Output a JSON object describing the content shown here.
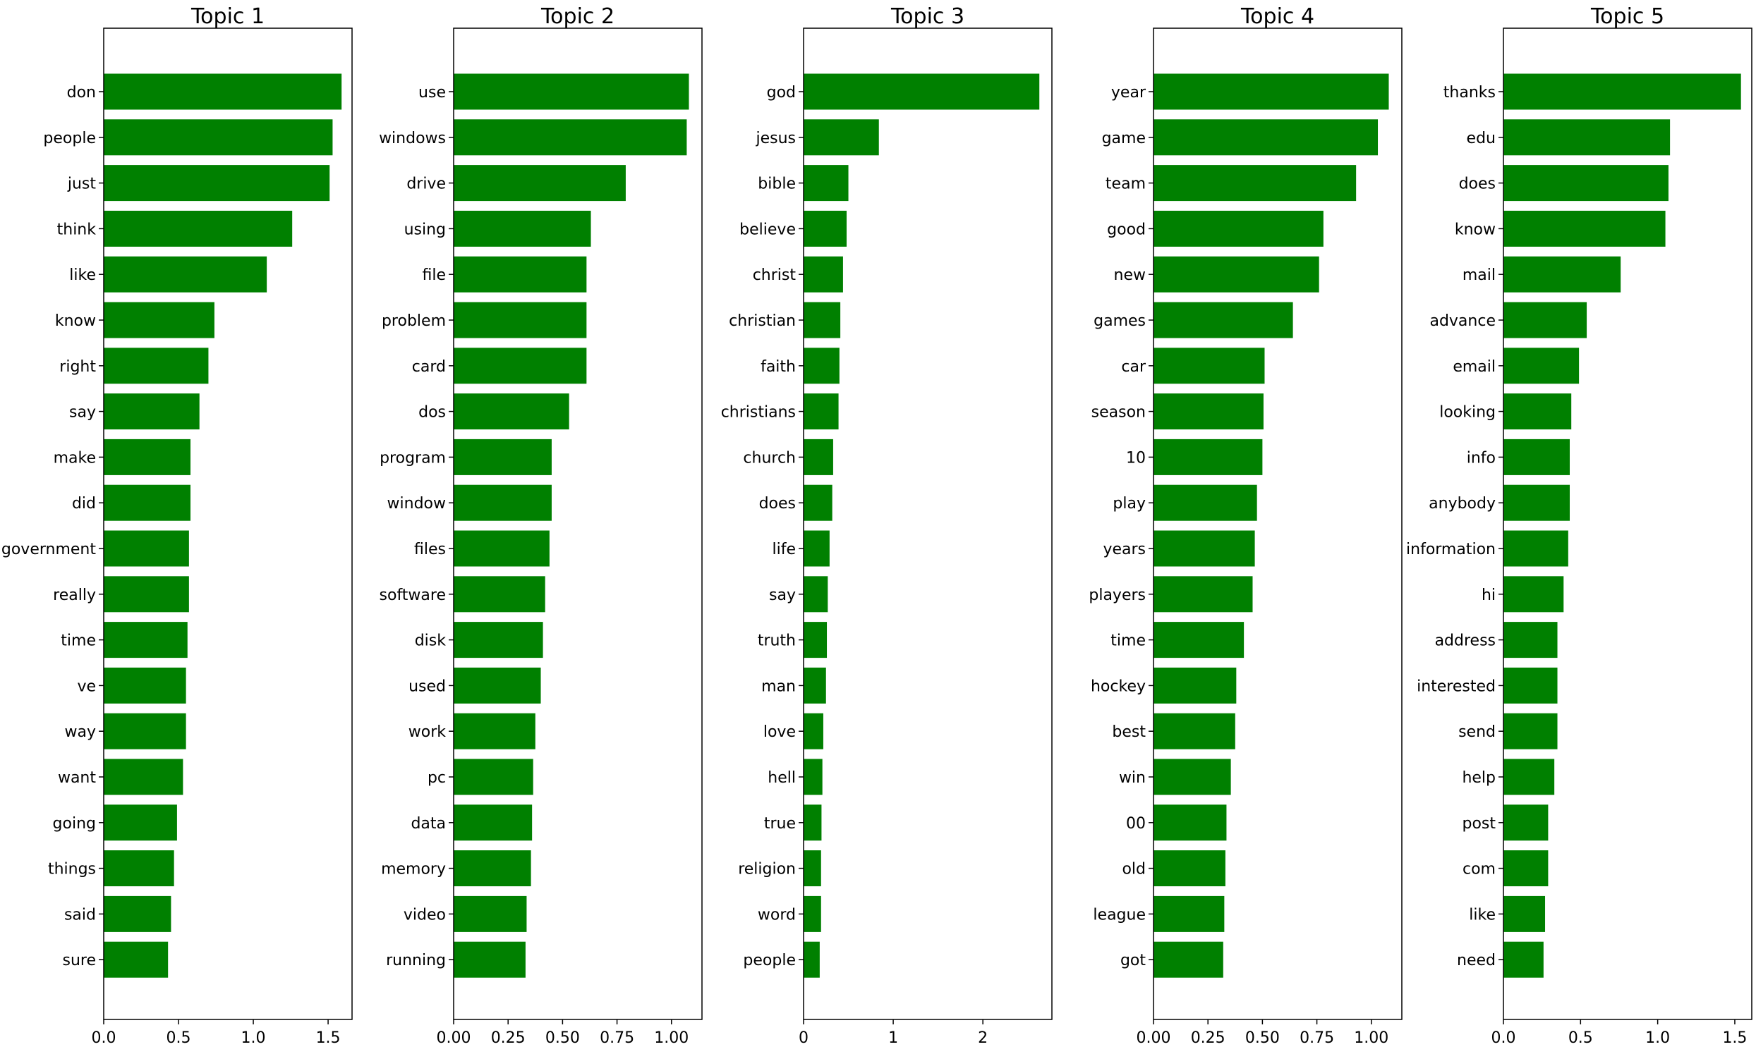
{
  "chart_data": [
    {
      "type": "bar",
      "orientation": "horizontal",
      "title": "Topic 1",
      "categories": [
        "don",
        "people",
        "just",
        "think",
        "like",
        "know",
        "right",
        "say",
        "make",
        "did",
        "government",
        "really",
        "time",
        "ve",
        "way",
        "want",
        "going",
        "things",
        "said",
        "sure"
      ],
      "values": [
        1.59,
        1.53,
        1.51,
        1.26,
        1.09,
        0.74,
        0.7,
        0.64,
        0.58,
        0.58,
        0.57,
        0.57,
        0.56,
        0.55,
        0.55,
        0.53,
        0.49,
        0.47,
        0.45,
        0.43
      ],
      "xlim": [
        0,
        1.66
      ],
      "xticks": [
        0.0,
        0.5,
        1.0,
        1.5
      ],
      "xtick_labels": [
        "0.0",
        "0.5",
        "1.0",
        "1.5"
      ],
      "bar_color": "#008000",
      "grid": false
    },
    {
      "type": "bar",
      "orientation": "horizontal",
      "title": "Topic 2",
      "categories": [
        "use",
        "windows",
        "drive",
        "using",
        "file",
        "problem",
        "card",
        "dos",
        "program",
        "window",
        "files",
        "software",
        "disk",
        "used",
        "work",
        "pc",
        "data",
        "memory",
        "video",
        "running"
      ],
      "values": [
        1.08,
        1.07,
        0.79,
        0.63,
        0.61,
        0.61,
        0.61,
        0.53,
        0.45,
        0.45,
        0.44,
        0.42,
        0.41,
        0.4,
        0.375,
        0.365,
        0.36,
        0.355,
        0.335,
        0.33
      ],
      "xlim": [
        0,
        1.14
      ],
      "xticks": [
        0.0,
        0.25,
        0.5,
        0.75,
        1.0
      ],
      "xtick_labels": [
        "0.00",
        "0.25",
        "0.50",
        "0.75",
        "1.00"
      ],
      "bar_color": "#008000",
      "grid": false
    },
    {
      "type": "bar",
      "orientation": "horizontal",
      "title": "Topic 3",
      "categories": [
        "god",
        "jesus",
        "bible",
        "believe",
        "christ",
        "christian",
        "faith",
        "christians",
        "church",
        "does",
        "life",
        "say",
        "truth",
        "man",
        "love",
        "hell",
        "true",
        "religion",
        "word",
        "people"
      ],
      "values": [
        2.63,
        0.84,
        0.5,
        0.48,
        0.44,
        0.41,
        0.4,
        0.39,
        0.33,
        0.32,
        0.29,
        0.27,
        0.26,
        0.25,
        0.22,
        0.21,
        0.2,
        0.195,
        0.195,
        0.18
      ],
      "xlim": [
        0,
        2.77
      ],
      "xticks": [
        0,
        1,
        2
      ],
      "xtick_labels": [
        "0",
        "1",
        "2"
      ],
      "bar_color": "#008000",
      "grid": false
    },
    {
      "type": "bar",
      "orientation": "horizontal",
      "title": "Topic 4",
      "categories": [
        "year",
        "game",
        "team",
        "good",
        "new",
        "games",
        "car",
        "season",
        "10",
        "play",
        "years",
        "players",
        "time",
        "hockey",
        "best",
        "win",
        "00",
        "old",
        "league",
        "got"
      ],
      "values": [
        1.08,
        1.03,
        0.93,
        0.78,
        0.76,
        0.64,
        0.51,
        0.505,
        0.5,
        0.475,
        0.465,
        0.455,
        0.415,
        0.38,
        0.375,
        0.355,
        0.335,
        0.33,
        0.325,
        0.32
      ],
      "xlim": [
        0,
        1.14
      ],
      "xticks": [
        0.0,
        0.25,
        0.5,
        0.75,
        1.0
      ],
      "xtick_labels": [
        "0.00",
        "0.25",
        "0.50",
        "0.75",
        "1.00"
      ],
      "bar_color": "#008000",
      "grid": false
    },
    {
      "type": "bar",
      "orientation": "horizontal",
      "title": "Topic 5",
      "categories": [
        "thanks",
        "edu",
        "does",
        "know",
        "mail",
        "advance",
        "email",
        "looking",
        "info",
        "anybody",
        "information",
        "hi",
        "address",
        "interested",
        "send",
        "help",
        "post",
        "com",
        "like",
        "need"
      ],
      "values": [
        1.54,
        1.08,
        1.07,
        1.05,
        0.76,
        0.54,
        0.49,
        0.44,
        0.43,
        0.43,
        0.42,
        0.39,
        0.35,
        0.35,
        0.35,
        0.33,
        0.29,
        0.29,
        0.27,
        0.26
      ],
      "xlim": [
        0,
        1.61
      ],
      "xticks": [
        0.0,
        0.5,
        1.0,
        1.5
      ],
      "xtick_labels": [
        "0.0",
        "0.5",
        "1.0",
        "1.5"
      ],
      "bar_color": "#008000",
      "grid": false
    }
  ]
}
